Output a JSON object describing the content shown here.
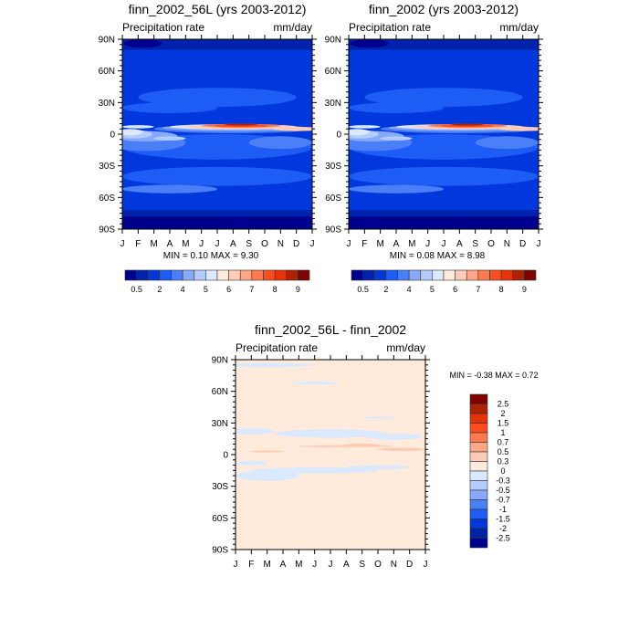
{
  "chart_data": [
    {
      "type": "heatmap",
      "title": "finn_2002_56L (yrs 2003-2012)",
      "left_string": "Precipitation rate",
      "right_string": "mm/day",
      "x_ticks": [
        "J",
        "F",
        "M",
        "A",
        "M",
        "J",
        "J",
        "A",
        "S",
        "O",
        "N",
        "D",
        "J"
      ],
      "y_ticks": [
        "90N",
        "60N",
        "30N",
        "0",
        "30S",
        "60S",
        "90S"
      ],
      "ylim": [
        -90,
        90
      ],
      "stats": "MIN =   0.10 MAX =   9.30",
      "min": 0.1,
      "max": 9.3,
      "colorbar_labels": [
        "0.5",
        "",
        "2",
        "",
        "4",
        "",
        "5",
        "",
        "6",
        "",
        "7",
        "",
        "8",
        "",
        "9"
      ]
    },
    {
      "type": "heatmap",
      "title": "finn_2002 (yrs 2003-2012)",
      "left_string": "Precipitation rate",
      "right_string": "mm/day",
      "x_ticks": [
        "J",
        "F",
        "M",
        "A",
        "M",
        "J",
        "J",
        "A",
        "S",
        "O",
        "N",
        "D",
        "J"
      ],
      "y_ticks": [
        "90N",
        "60N",
        "30N",
        "0",
        "30S",
        "60S",
        "90S"
      ],
      "ylim": [
        -90,
        90
      ],
      "stats": "MIN =   0.08 MAX =   8.98",
      "min": 0.08,
      "max": 8.98,
      "colorbar_labels": [
        "0.5",
        "",
        "2",
        "",
        "4",
        "",
        "5",
        "",
        "6",
        "",
        "7",
        "",
        "8",
        "",
        "9"
      ]
    },
    {
      "type": "heatmap",
      "title": "finn_2002_56L - finn_2002",
      "left_string": "Precipitation rate",
      "right_string": "mm/day",
      "x_ticks": [
        "J",
        "F",
        "M",
        "A",
        "M",
        "J",
        "J",
        "A",
        "S",
        "O",
        "N",
        "D",
        "J"
      ],
      "y_ticks": [
        "90N",
        "60N",
        "30N",
        "0",
        "30S",
        "60S",
        "90S"
      ],
      "ylim": [
        -90,
        90
      ],
      "stats": "MIN =  -0.38 MAX =   0.72",
      "min": -0.38,
      "max": 0.72,
      "colorbar_labels": [
        "2.5",
        "2",
        "1.5",
        "1",
        "0.7",
        "0.5",
        "0.3",
        "0",
        "-0.3",
        "-0.5",
        "-0.7",
        "-1",
        "-1.5",
        "-2",
        "-2.5"
      ]
    }
  ],
  "palette": [
    "#00008f",
    "#0022aa",
    "#0038dd",
    "#1d5cf5",
    "#4a7ff8",
    "#86a9fb",
    "#b4ccfd",
    "#dbe9fe",
    "#ffeadb",
    "#ffcbb4",
    "#ffa688",
    "#ff7a4d",
    "#ff4d1f",
    "#e63209",
    "#b02200",
    "#800000"
  ]
}
